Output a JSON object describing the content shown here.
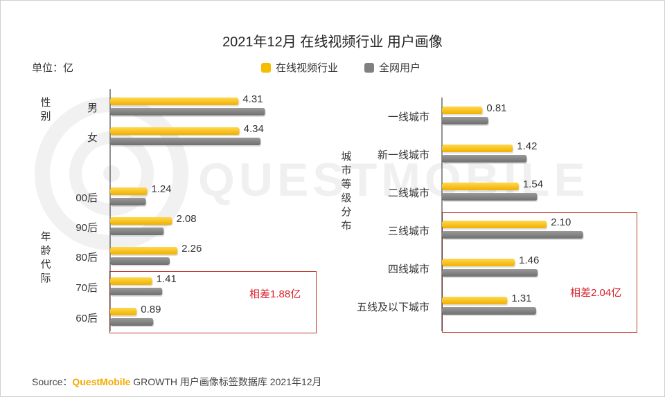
{
  "title": "2021年12月 在线视频行业 用户画像",
  "unit": "单位：亿",
  "legend": [
    {
      "name": "在线视频行业",
      "color": "#f5bd00"
    },
    {
      "name": "全网用户",
      "color": "#808080"
    }
  ],
  "watermark": "QUESTMOBILE",
  "source": {
    "prefix": "Source：",
    "brand": "QuestMobile",
    "suffix": "GROWTH 用户画像标签数据库 2021年12月"
  },
  "chart_data": [
    {
      "type": "bar",
      "orientation": "horizontal",
      "title": "性别 / 年龄代际",
      "groups": [
        {
          "label": "性别",
          "categories": [
            "男",
            "女"
          ]
        },
        {
          "label": "年龄代际",
          "categories": [
            "00后",
            "90后",
            "80后",
            "70后",
            "60后"
          ]
        }
      ],
      "categories": [
        "男",
        "女",
        "00后",
        "90后",
        "80后",
        "70后",
        "60后"
      ],
      "series": [
        {
          "name": "在线视频行业",
          "values": [
            4.31,
            4.34,
            1.24,
            2.08,
            2.26,
            1.41,
            0.89
          ],
          "labels": [
            "4.31",
            "4.34",
            "1.24",
            "2.08",
            "2.26",
            "1.41",
            "0.89"
          ]
        },
        {
          "name": "全网用户",
          "values": [
            5.2,
            5.05,
            1.2,
            1.8,
            2.0,
            1.75,
            1.45
          ]
        }
      ],
      "annotation": "相差1.88亿"
    },
    {
      "type": "bar",
      "orientation": "horizontal",
      "title": "城市等级分布",
      "group_label": "城市等级分布",
      "categories": [
        "一线城市",
        "新一线城市",
        "二线城市",
        "三线城市",
        "四线城市",
        "五线及以下城市"
      ],
      "series": [
        {
          "name": "在线视频行业",
          "values": [
            0.81,
            1.42,
            1.54,
            2.1,
            1.46,
            1.31
          ],
          "labels": [
            "0.81",
            "1.42",
            "1.54",
            "2.10",
            "1.46",
            "1.31"
          ]
        },
        {
          "name": "全网用户",
          "values": [
            0.93,
            1.7,
            1.91,
            2.83,
            1.92,
            1.89
          ]
        }
      ],
      "annotation": "相差2.04亿"
    }
  ]
}
